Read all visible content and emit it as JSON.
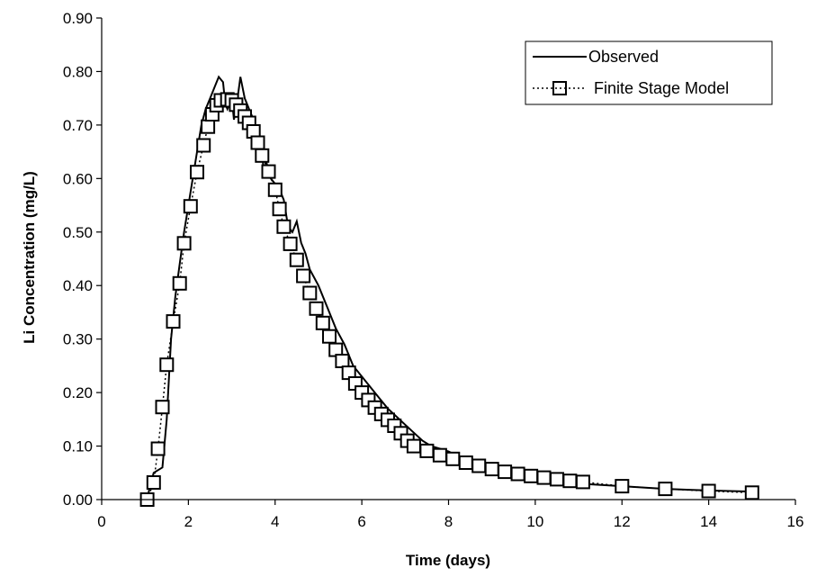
{
  "chart_data": {
    "type": "line",
    "title": "",
    "xlabel": "Time (days)",
    "ylabel": "Li Concentration (mg/L)",
    "xlim": [
      0,
      16
    ],
    "ylim": [
      0,
      0.9
    ],
    "xticks": [
      0,
      2,
      4,
      6,
      8,
      10,
      12,
      14,
      16
    ],
    "xtick_labels": [
      "0",
      "2",
      "4",
      "6",
      "8",
      "10",
      "12",
      "14",
      "16"
    ],
    "yticks": [
      0,
      0.1,
      0.2,
      0.3,
      0.4,
      0.5,
      0.6,
      0.7,
      0.8,
      0.9
    ],
    "ytick_labels": [
      "0.00",
      "0.10",
      "0.20",
      "0.30",
      "0.40",
      "0.50",
      "0.60",
      "0.70",
      "0.80",
      "0.90"
    ],
    "grid": false,
    "legend_position": "top-right",
    "series": [
      {
        "name": "Observed",
        "style": "solid",
        "color": "#000000",
        "x": [
          1.05,
          1.1,
          1.2,
          1.3,
          1.4,
          1.5,
          1.6,
          1.7,
          1.8,
          1.9,
          2.0,
          2.1,
          2.2,
          2.3,
          2.4,
          2.5,
          2.6,
          2.7,
          2.8,
          2.85,
          2.9,
          3.0,
          3.05,
          3.1,
          3.2,
          3.3,
          3.4,
          3.5,
          3.6,
          3.7,
          3.75,
          3.8,
          3.9,
          4.0,
          4.1,
          4.2,
          4.3,
          4.4,
          4.5,
          4.6,
          4.7,
          4.8,
          5.0,
          5.2,
          5.4,
          5.6,
          5.8,
          6.0,
          6.2,
          6.4,
          6.6,
          6.8,
          7.0,
          7.2,
          7.4,
          7.6,
          7.8,
          8.0,
          8.5,
          9.0,
          9.5,
          10.0,
          10.5,
          11.0,
          12.0,
          13.0,
          14.0,
          15.0
        ],
        "y": [
          0.0,
          0.02,
          0.05,
          0.055,
          0.06,
          0.15,
          0.3,
          0.38,
          0.44,
          0.5,
          0.55,
          0.6,
          0.65,
          0.7,
          0.73,
          0.75,
          0.77,
          0.79,
          0.78,
          0.74,
          0.73,
          0.75,
          0.71,
          0.73,
          0.79,
          0.75,
          0.73,
          0.71,
          0.68,
          0.65,
          0.6,
          0.63,
          0.6,
          0.59,
          0.58,
          0.56,
          0.51,
          0.5,
          0.52,
          0.48,
          0.46,
          0.43,
          0.4,
          0.36,
          0.32,
          0.29,
          0.25,
          0.23,
          0.21,
          0.19,
          0.17,
          0.155,
          0.14,
          0.125,
          0.11,
          0.1,
          0.095,
          0.09,
          0.07,
          0.055,
          0.045,
          0.04,
          0.035,
          0.03,
          0.025,
          0.02,
          0.017,
          0.015
        ]
      },
      {
        "name": "Finite Stage Model",
        "style": "dotted",
        "marker": "square",
        "color": "#000000",
        "x": [
          1.05,
          1.2,
          1.3,
          1.4,
          1.5,
          1.65,
          1.8,
          1.9,
          2.05,
          2.2,
          2.35,
          2.45,
          2.55,
          2.65,
          2.75,
          2.9,
          3.0,
          3.1,
          3.2,
          3.3,
          3.4,
          3.5,
          3.6,
          3.7,
          3.85,
          4.0,
          4.1,
          4.2,
          4.35,
          4.5,
          4.65,
          4.8,
          4.95,
          5.1,
          5.25,
          5.4,
          5.55,
          5.7,
          5.85,
          6.0,
          6.15,
          6.3,
          6.45,
          6.6,
          6.75,
          6.9,
          7.05,
          7.2,
          7.5,
          7.8,
          8.1,
          8.4,
          8.7,
          9.0,
          9.3,
          9.6,
          9.9,
          10.2,
          10.5,
          10.8,
          11.1,
          12.0,
          13.0,
          14.0,
          15.0
        ],
        "y": [
          0.0,
          0.032,
          0.095,
          0.173,
          0.252,
          0.333,
          0.404,
          0.479,
          0.548,
          0.612,
          0.662,
          0.697,
          0.72,
          0.737,
          0.746,
          0.748,
          0.746,
          0.738,
          0.727,
          0.716,
          0.704,
          0.688,
          0.667,
          0.643,
          0.613,
          0.579,
          0.543,
          0.51,
          0.478,
          0.448,
          0.418,
          0.386,
          0.357,
          0.33,
          0.305,
          0.28,
          0.259,
          0.237,
          0.217,
          0.2,
          0.186,
          0.172,
          0.16,
          0.149,
          0.138,
          0.124,
          0.11,
          0.1,
          0.091,
          0.083,
          0.076,
          0.069,
          0.063,
          0.057,
          0.052,
          0.048,
          0.044,
          0.041,
          0.038,
          0.035,
          0.033,
          0.025,
          0.02,
          0.016,
          0.013
        ]
      }
    ]
  }
}
